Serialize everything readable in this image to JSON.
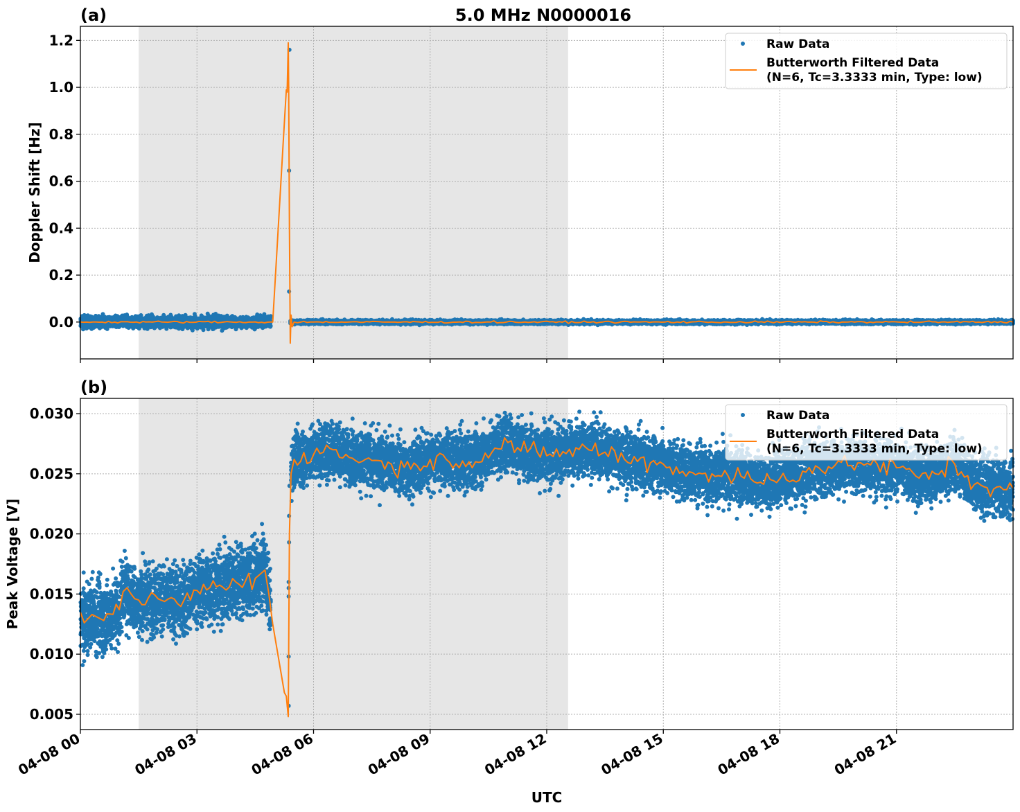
{
  "figure": {
    "title": "5.0 MHz N0000016",
    "xlabel": "UTC",
    "colors": {
      "raw": "#1f77b4",
      "filtered": "#ff7f0e",
      "shade": "#e6e6e6",
      "grid": "#b0b0b0"
    }
  },
  "legend": {
    "raw_label": "Raw Data",
    "filtered_label_line1": "Butterworth Filtered Data",
    "filtered_label_line2": "(N=6, Tc=3.3333 min, Type: low)"
  },
  "panels": [
    {
      "label": "(a)",
      "ylabel": "Doppler Shift [Hz]",
      "yticks": [
        "1.2",
        "1.0",
        "0.8",
        "0.6",
        "0.4",
        "0.2",
        "0.0"
      ]
    },
    {
      "label": "(b)",
      "ylabel": "Peak Voltage [V]",
      "yticks": [
        "0.030",
        "0.025",
        "0.020",
        "0.015",
        "0.010",
        "0.005"
      ]
    }
  ],
  "xticks": [
    "04-08 00",
    "04-08 03",
    "04-08 06",
    "04-08 09",
    "04-08 12",
    "04-08 15",
    "04-08 18",
    "04-08 21"
  ],
  "chart_data": [
    {
      "type": "line",
      "title": "5.0 MHz N0000016",
      "panel": "(a)",
      "xlabel": "",
      "ylabel": "Doppler Shift [Hz]",
      "xlim_hours": [
        0,
        24
      ],
      "ylim": [
        -0.157,
        1.26
      ],
      "yticks": [
        0.0,
        0.2,
        0.4,
        0.6,
        0.8,
        1.0,
        1.2
      ],
      "xtick_labels": [
        "04-08 00",
        "04-08 03",
        "04-08 06",
        "04-08 09",
        "04-08 12",
        "04-08 15",
        "04-08 18",
        "04-08 21"
      ],
      "grid": true,
      "legend_position": "upper right",
      "shaded_region_hours": [
        1.5,
        12.55
      ],
      "series": [
        {
          "name": "Raw Data",
          "style": "scatter",
          "x_hours": [
            0,
            1,
            1.5,
            2,
            2.5,
            3,
            4,
            4.9,
            5.35,
            5.37,
            5.38,
            5.4,
            5.5,
            6,
            9,
            12,
            15,
            18,
            21,
            24
          ],
          "values": [
            0.0,
            0.005,
            0.0,
            0.01,
            0.0,
            0.0,
            0.0,
            0.0,
            1.16,
            0.645,
            0.13,
            0.0,
            0.0,
            0.0,
            0.0,
            0.0,
            0.0,
            0.0,
            0.0,
            0.0
          ],
          "spread": 0.02
        },
        {
          "name": "Butterworth Filtered Data (N=6, Tc=3.3333 min, Type: low)",
          "style": "line",
          "x_hours": [
            0,
            4.9,
            4.95,
            5.3,
            5.32,
            5.35,
            5.36,
            5.38,
            5.4,
            5.42,
            5.45,
            5.5,
            6,
            24
          ],
          "values": [
            0.0,
            0.0,
            0.0,
            0.99,
            0.98,
            1.19,
            1.0,
            0.4,
            -0.09,
            0.03,
            -0.02,
            0.0,
            0.0,
            0.0
          ]
        }
      ]
    },
    {
      "type": "line",
      "panel": "(b)",
      "xlabel": "UTC",
      "ylabel": "Peak Voltage [V]",
      "xlim_hours": [
        0,
        24
      ],
      "ylim": [
        0.00373,
        0.03127
      ],
      "yticks": [
        0.005,
        0.01,
        0.015,
        0.02,
        0.025,
        0.03
      ],
      "xtick_labels": [
        "04-08 00",
        "04-08 03",
        "04-08 06",
        "04-08 09",
        "04-08 12",
        "04-08 15",
        "04-08 18",
        "04-08 21"
      ],
      "grid": true,
      "legend_position": "upper right",
      "shaded_region_hours": [
        1.5,
        12.55
      ],
      "series": [
        {
          "name": "Raw Data",
          "style": "scatter",
          "x_hours": [
            0,
            0.5,
            1,
            1.5,
            2,
            2.5,
            3,
            3.5,
            4,
            4.5,
            4.8,
            5.37,
            5.4,
            6,
            7,
            8,
            9,
            10,
            11,
            12,
            13,
            14,
            15,
            16,
            17,
            18,
            19,
            20,
            21,
            22,
            23,
            24
          ],
          "values": [
            0.0128,
            0.0135,
            0.014,
            0.0145,
            0.0142,
            0.0145,
            0.015,
            0.0155,
            0.016,
            0.0165,
            0.016,
            0.015,
            0.0258,
            0.0265,
            0.0262,
            0.0258,
            0.0262,
            0.0265,
            0.0272,
            0.0265,
            0.027,
            0.0265,
            0.0262,
            0.0255,
            0.025,
            0.0245,
            0.025,
            0.0258,
            0.0255,
            0.025,
            0.0245,
            0.024
          ],
          "spread": 0.0025
        },
        {
          "name": "Butterworth Filtered Data (N=6, Tc=3.3333 min, Type: low)",
          "style": "line",
          "x_hours": [
            0,
            0.1,
            0.3,
            0.6,
            1.0,
            1.1,
            1.5,
            2.0,
            2.5,
            3.0,
            3.5,
            4.0,
            4.5,
            4.75,
            4.85,
            4.95,
            5.25,
            5.3,
            5.35,
            5.38,
            5.42,
            5.5,
            6,
            6.5,
            7,
            8,
            8.5,
            9,
            10,
            11,
            11.5,
            12,
            13,
            13.5,
            14,
            15,
            15.5,
            16,
            17,
            17.5,
            18,
            19,
            20,
            21,
            21.5,
            22,
            22.5,
            23,
            24
          ],
          "values": [
            0.0135,
            0.0126,
            0.0133,
            0.0128,
            0.0137,
            0.0152,
            0.0145,
            0.0146,
            0.0142,
            0.0153,
            0.0156,
            0.016,
            0.0163,
            0.017,
            0.015,
            0.0125,
            0.0068,
            0.0065,
            0.0048,
            0.02,
            0.025,
            0.0262,
            0.0266,
            0.027,
            0.0263,
            0.0258,
            0.0254,
            0.0262,
            0.026,
            0.0276,
            0.0268,
            0.0265,
            0.0272,
            0.0268,
            0.0262,
            0.0258,
            0.0252,
            0.025,
            0.0248,
            0.0243,
            0.0246,
            0.0255,
            0.0259,
            0.0255,
            0.0248,
            0.025,
            0.0258,
            0.0241,
            0.0238
          ]
        }
      ]
    }
  ]
}
